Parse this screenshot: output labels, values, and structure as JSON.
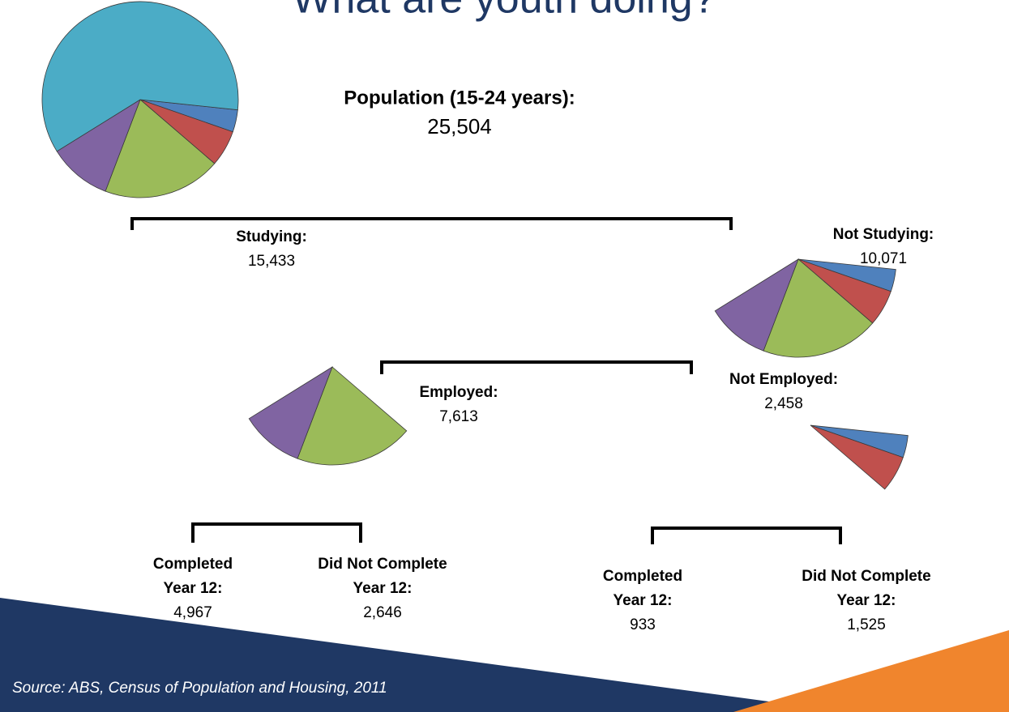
{
  "title": "What are youth doing?",
  "nodes": [
    {
      "title": [
        "Population (15-24 years):"
      ],
      "value": 25504,
      "value_label": "25,504"
    },
    {
      "title": [
        "Studying:"
      ],
      "value": 15433,
      "value_label": "15,433",
      "color": "#4bacc6"
    },
    {
      "title": [
        "Not Studying:"
      ],
      "value": 10071,
      "value_label": "10,071"
    },
    {
      "title": [
        "Employed:"
      ],
      "value": 7613,
      "value_label": "7,613"
    },
    {
      "title": [
        "Not Employed:"
      ],
      "value": 2458,
      "value_label": "2,458"
    },
    {
      "title": [
        "Completed",
        "Year 12:"
      ],
      "value": 4967,
      "value_label": "4,967",
      "color": "#9bbb59"
    },
    {
      "title": [
        "Did Not Complete",
        "Year 12:"
      ],
      "value": 2646,
      "value_label": "2,646",
      "color": "#8064a2"
    },
    {
      "title": [
        "Completed",
        "Year 12:"
      ],
      "value": 933,
      "value_label": "933",
      "color": "#4f81bd"
    },
    {
      "title": [
        "Did Not Complete",
        "Year 12:"
      ],
      "value": 1525,
      "value_label": "1,525",
      "color": "#c0504d"
    }
  ],
  "source": "Source: ABS, Census of Population and Housing, 2011"
}
